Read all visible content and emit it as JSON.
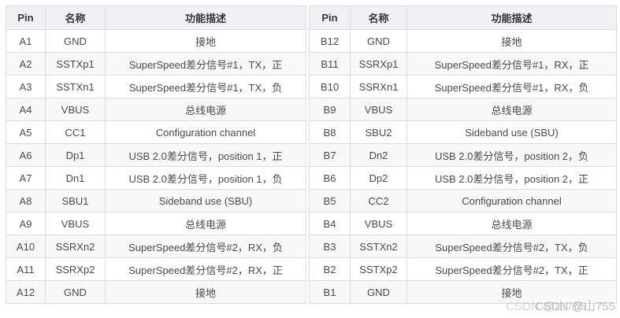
{
  "tables": [
    {
      "name": "pin-table-a",
      "headers": [
        "Pin",
        "名称",
        "功能描述"
      ],
      "rows": [
        [
          "A1",
          "GND",
          "接地"
        ],
        [
          "A2",
          "SSTXp1",
          "SuperSpeed差分信号#1，TX，正"
        ],
        [
          "A3",
          "SSTXn1",
          "SuperSpeed差分信号#1，TX，负"
        ],
        [
          "A4",
          "VBUS",
          "总线电源"
        ],
        [
          "A5",
          "CC1",
          "Configuration channel"
        ],
        [
          "A6",
          "Dp1",
          "USB 2.0差分信号，position 1，正"
        ],
        [
          "A7",
          "Dn1",
          "USB 2.0差分信号，position 1，负"
        ],
        [
          "A8",
          "SBU1",
          "Sideband use (SBU)"
        ],
        [
          "A9",
          "VBUS",
          "总线电源"
        ],
        [
          "A10",
          "SSRXn2",
          "SuperSpeed差分信号#2，RX，负"
        ],
        [
          "A11",
          "SSRXp2",
          "SuperSpeed差分信号#2，RX，正"
        ],
        [
          "A12",
          "GND",
          "接地"
        ]
      ]
    },
    {
      "name": "pin-table-b",
      "headers": [
        "Pin",
        "名称",
        "功能描述"
      ],
      "rows": [
        [
          "B12",
          "GND",
          "接地"
        ],
        [
          "B11",
          "SSRXp1",
          "SuperSpeed差分信号#1，RX，正"
        ],
        [
          "B10",
          "SSRXn1",
          "SuperSpeed差分信号#1，RX，负"
        ],
        [
          "B9",
          "VBUS",
          "总线电源"
        ],
        [
          "B8",
          "SBU2",
          "Sideband use (SBU)"
        ],
        [
          "B7",
          "Dn2",
          "USB 2.0差分信号，position 2，负"
        ],
        [
          "B6",
          "Dp2",
          "USB 2.0差分信号，position 2，正"
        ],
        [
          "B5",
          "CC2",
          "Configuration channel"
        ],
        [
          "B4",
          "VBUS",
          "总线电源"
        ],
        [
          "B3",
          "SSTXn2",
          "SuperSpeed差分信号#2，TX，负"
        ],
        [
          "B2",
          "SSTXp2",
          "SuperSpeed差分信号#2，TX，正"
        ],
        [
          "B1",
          "GND",
          "接地"
        ]
      ]
    }
  ],
  "watermark": {
    "text": "CSDN @山755"
  },
  "colors": {
    "header_bg": "#eff1f3",
    "row_stripe_bg": "#f8f8f8",
    "border": "#dcdcdc",
    "cell_text": "#4a4a4a",
    "header_text": "#363636",
    "watermark_text": "#969696"
  }
}
